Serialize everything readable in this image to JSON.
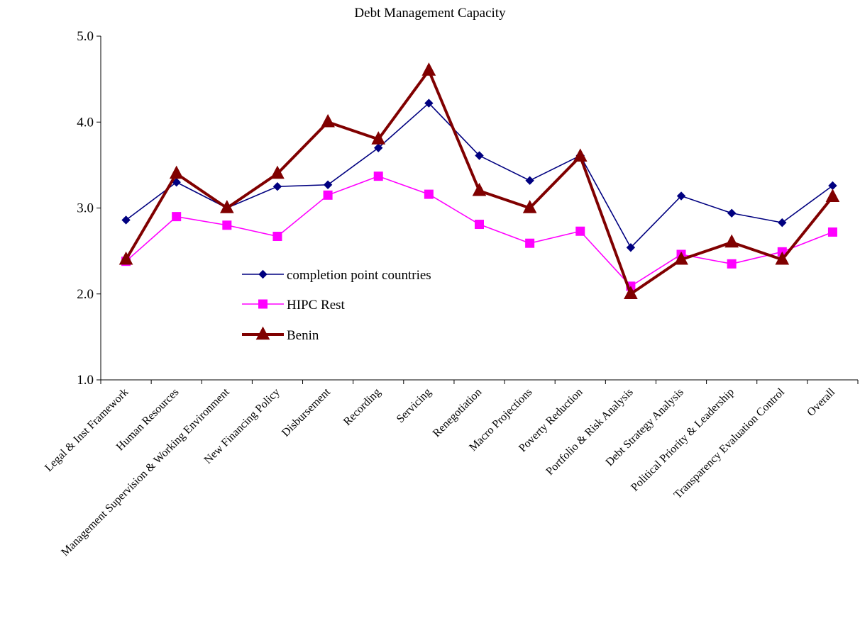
{
  "chart_data": {
    "type": "line",
    "title": "Debt Management Capacity",
    "xlabel": "",
    "ylabel": "",
    "ylim": [
      1.0,
      5.0
    ],
    "yticks": [
      "1.0",
      "2.0",
      "3.0",
      "4.0",
      "5.0"
    ],
    "grid": false,
    "legend_position": "center-left",
    "categories": [
      "Legal & Inst Framework",
      "Human Resources",
      "Management Supervision & Working Environment",
      "New Financing Policy",
      "Disbursement",
      "Recording",
      "Servicing",
      "Renegotiation",
      "Macro Projections",
      "Poverty Reduction",
      "Portfolio & Risk Analysis",
      "Debt Strategy Analysis",
      "Political Priority & Leadership",
      "Transparency Evaluation Control",
      "Overall"
    ],
    "series": [
      {
        "name": "completion point countries",
        "color": "#000080",
        "marker": "diamond",
        "values": [
          2.86,
          3.3,
          3.0,
          3.25,
          3.27,
          3.7,
          4.22,
          3.61,
          3.32,
          3.61,
          2.54,
          3.14,
          2.94,
          2.83,
          3.26
        ]
      },
      {
        "name": "HIPC Rest",
        "color": "#ff00ff",
        "marker": "square",
        "values": [
          2.38,
          2.9,
          2.8,
          2.67,
          3.15,
          3.37,
          3.16,
          2.81,
          2.59,
          2.73,
          2.09,
          2.46,
          2.35,
          2.49,
          2.72
        ]
      },
      {
        "name": "Benin",
        "color": "#800000",
        "marker": "triangle",
        "values": [
          2.4,
          3.4,
          3.0,
          3.4,
          4.0,
          3.8,
          4.6,
          3.2,
          3.0,
          3.6,
          2.0,
          2.4,
          2.6,
          2.4,
          3.13
        ]
      }
    ]
  }
}
